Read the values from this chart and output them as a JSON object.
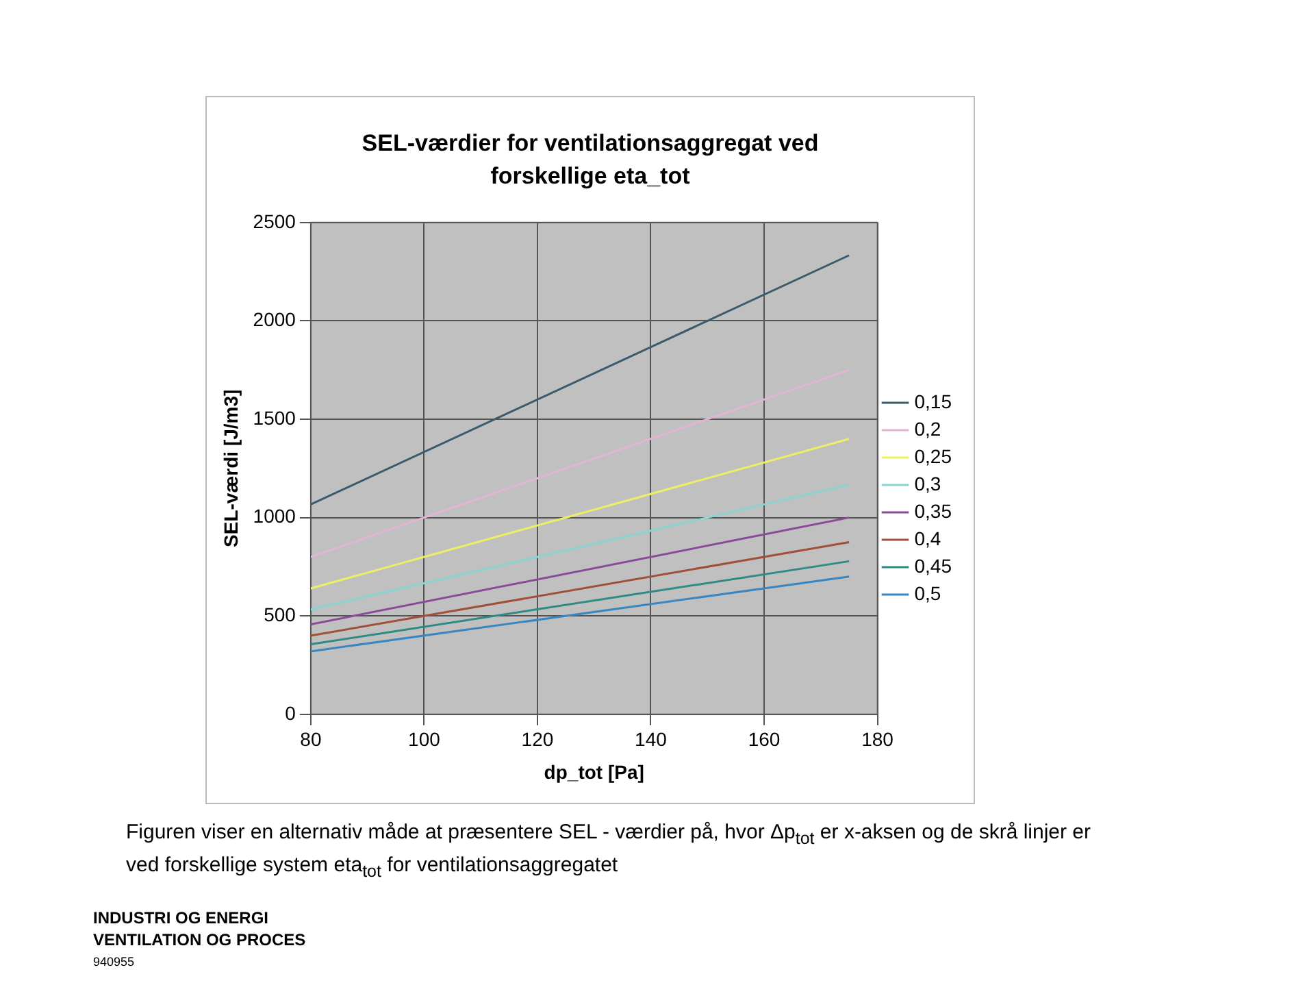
{
  "chart_data": {
    "type": "line",
    "title": "SEL-værdier for ventilationsaggregat ved forskellige eta_tot",
    "xlabel": "dp_tot [Pa]",
    "ylabel": "SEL-værdi [J/m3]",
    "x": [
      80,
      175
    ],
    "xlim": [
      80,
      180
    ],
    "xticks": [
      80,
      100,
      120,
      140,
      160,
      180
    ],
    "ylim": [
      0,
      2500
    ],
    "yticks": [
      0,
      500,
      1000,
      1500,
      2000,
      2500
    ],
    "grid": true,
    "legend": "right",
    "marker": "none",
    "line_style": "solid",
    "series": [
      {
        "name": "0,15",
        "color": "#3b5a6b",
        "values": [
          1067,
          2333
        ]
      },
      {
        "name": "0,2",
        "color": "#e2b4d6",
        "values": [
          800,
          1750
        ]
      },
      {
        "name": "0,25",
        "color": "#eeee66",
        "values": [
          640,
          1400
        ]
      },
      {
        "name": "0,3",
        "color": "#88d4d4",
        "values": [
          533,
          1167
        ]
      },
      {
        "name": "0,35",
        "color": "#8a4a9a",
        "values": [
          457,
          1000
        ]
      },
      {
        "name": "0,4",
        "color": "#a0503a",
        "values": [
          400,
          875
        ]
      },
      {
        "name": "0,45",
        "color": "#2e8a86",
        "values": [
          356,
          778
        ]
      },
      {
        "name": "0,5",
        "color": "#3a86c0",
        "values": [
          320,
          700
        ]
      }
    ],
    "annotations": [
      "Figuren viser en alternativ måde at præsentere SEL - værdier på, hvor Δp$_{tot}$ er x-aksen  og de skrå linjer er ved forskellige system eta$_{tot}$ for ventilationsaggregatet",
      "INDUSTRI OG ENERGI",
      "VENTILATION OG PROCES",
      "940955"
    ]
  }
}
